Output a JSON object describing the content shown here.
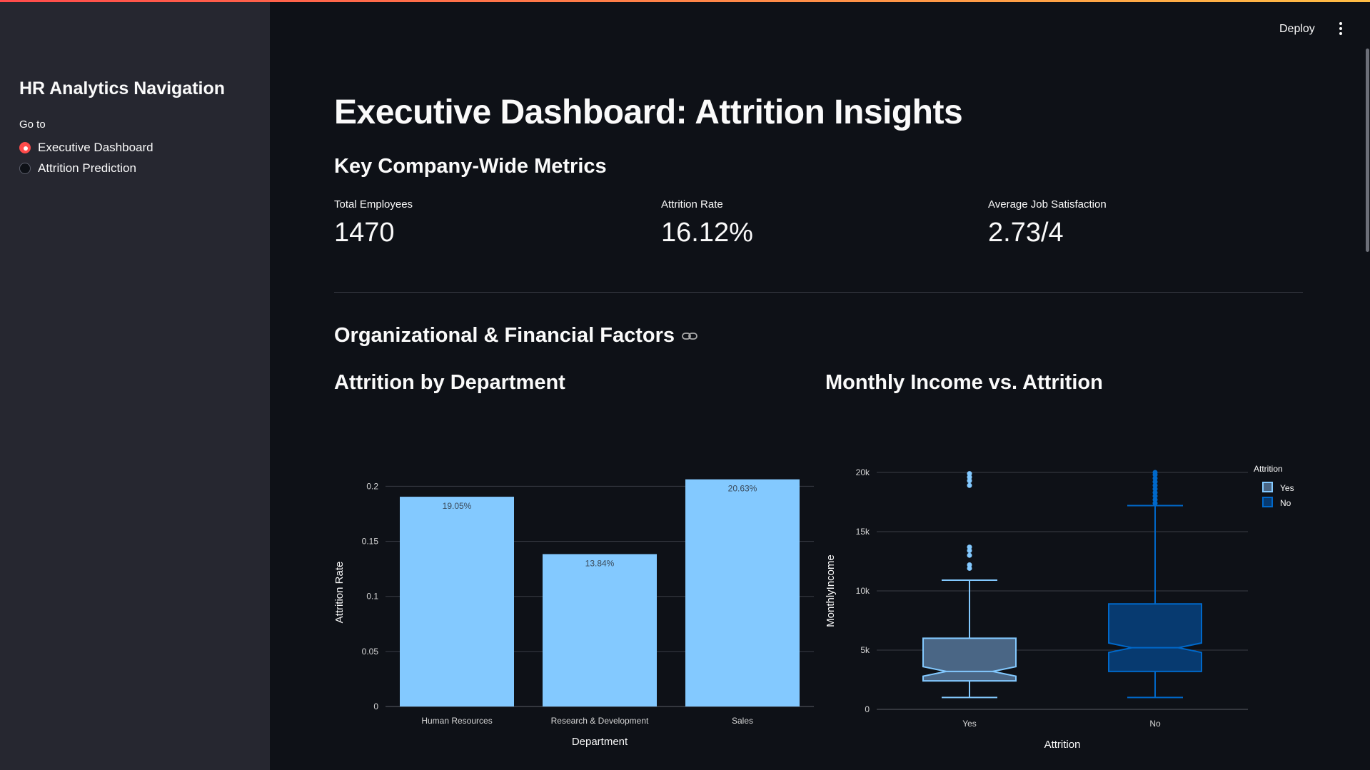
{
  "header": {
    "deploy_label": "Deploy",
    "menu_icon": "kebab-menu-icon"
  },
  "sidebar": {
    "title": "HR Analytics Navigation",
    "goto_label": "Go to",
    "options": [
      {
        "label": "Executive Dashboard",
        "selected": true
      },
      {
        "label": "Attrition Prediction",
        "selected": false
      }
    ]
  },
  "main": {
    "title": "Executive Dashboard: Attrition Insights",
    "metrics_title": "Key Company-Wide Metrics",
    "metrics": [
      {
        "label": "Total Employees",
        "value": "1470"
      },
      {
        "label": "Attrition Rate",
        "value": "16.12%"
      },
      {
        "label": "Average Job Satisfaction",
        "value": "2.73/4"
      }
    ],
    "section_title": "Organizational & Financial Factors",
    "section_icon": "link-icon"
  },
  "colors": {
    "accent": "#ff4b4b",
    "bar": "#83c9ff",
    "box_yes_fill": "#4a6685",
    "box_yes_line": "#83c9ff",
    "box_no_fill": "#073a70",
    "box_no_line": "#0068c9"
  },
  "chart_data": [
    {
      "type": "bar",
      "title": "Attrition by Department",
      "categories": [
        "Human Resources",
        "Research & Development",
        "Sales"
      ],
      "values": [
        0.1905,
        0.1384,
        0.2063
      ],
      "data_labels": [
        "19.05%",
        "13.84%",
        "20.63%"
      ],
      "xlabel": "Department",
      "ylabel": "Attrition Rate",
      "ylim": [
        0,
        0.2
      ],
      "yticks": [
        0,
        0.05,
        0.1,
        0.15,
        0.2
      ],
      "ytick_labels": [
        "0",
        "0.05",
        "0.1",
        "0.15",
        "0.2"
      ],
      "grid": true
    },
    {
      "type": "box",
      "title": "Monthly Income vs. Attrition",
      "categories": [
        "Yes",
        "No"
      ],
      "xlabel": "Attrition",
      "ylabel": "MonthlyIncome",
      "ylim": [
        0,
        20000
      ],
      "yticks": [
        0,
        5000,
        10000,
        15000,
        20000
      ],
      "ytick_labels": [
        "0",
        "5k",
        "10k",
        "15k",
        "20k"
      ],
      "legend_title": "Attrition",
      "legend_position": "top-right",
      "notched": true,
      "grid": true,
      "series": [
        {
          "name": "Yes",
          "min": 1000,
          "q1": 2400,
          "median": 3200,
          "q3": 6000,
          "max": 10900,
          "notch_low": 2800,
          "notch_high": 3600,
          "outliers": [
            11900,
            12200,
            13000,
            13400,
            13700,
            18900,
            19300,
            19600,
            19900
          ]
        },
        {
          "name": "No",
          "min": 1000,
          "q1": 3200,
          "median": 5200,
          "q3": 8900,
          "max": 17200,
          "notch_low": 4800,
          "notch_high": 5600,
          "outliers": [
            17400,
            17700,
            18000,
            18300,
            18600,
            18900,
            19200,
            19500,
            19800,
            20000
          ]
        }
      ]
    }
  ]
}
